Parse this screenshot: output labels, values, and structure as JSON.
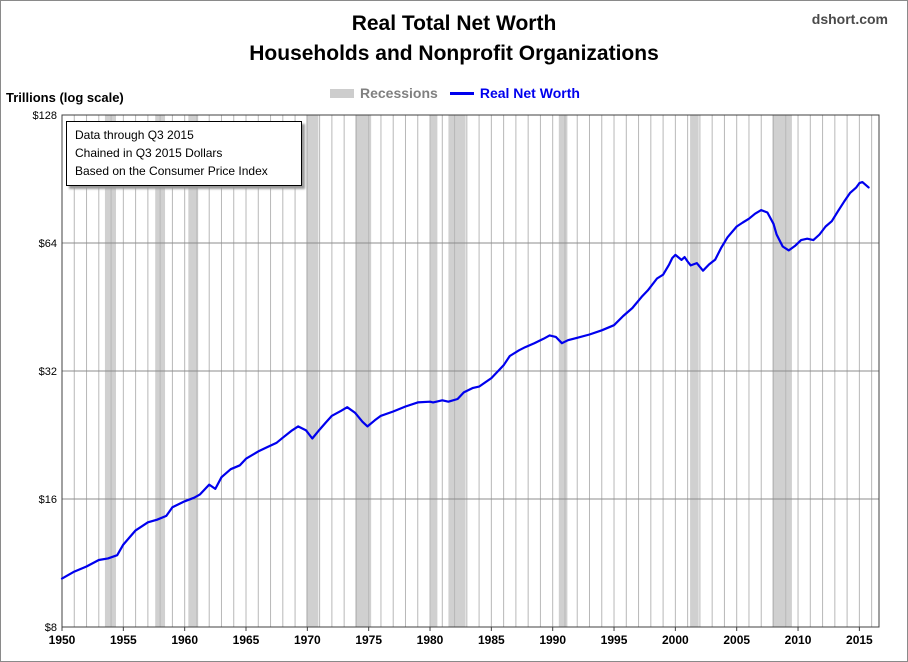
{
  "chart_data": {
    "type": "line",
    "title": "Real Total Net Worth",
    "subtitle": "Households and Nonprofit Organizations",
    "source": "dshort.com",
    "ylabel": "Trillions (log scale)",
    "xlabel": "",
    "y_scale": "log",
    "ylim": [
      8,
      128
    ],
    "xlim": [
      1950,
      2016.6
    ],
    "y_ticks": [
      8,
      16,
      32,
      64,
      128
    ],
    "y_tick_labels": [
      "$8",
      "$16",
      "$32",
      "$64",
      "$128"
    ],
    "x_ticks": [
      1950,
      1955,
      1960,
      1965,
      1970,
      1975,
      1980,
      1985,
      1990,
      1995,
      2000,
      2005,
      2010,
      2015
    ],
    "x_tick_labels": [
      "1950",
      "1955",
      "1960",
      "1965",
      "1970",
      "1975",
      "1980",
      "1985",
      "1990",
      "1995",
      "2000",
      "2005",
      "2010",
      "2015"
    ],
    "grid": true,
    "legend": {
      "placement": "top-center",
      "entries": [
        {
          "label": "Recessions",
          "color": "#cdcdcd",
          "kind": "band"
        },
        {
          "label": "Real Net Worth",
          "color": "#0000ee",
          "kind": "line"
        }
      ]
    },
    "annotation": [
      "Data through Q3 2015",
      "Chained in Q3 2015  Dollars",
      "Based on the Consumer Price Index"
    ],
    "recessions": [
      [
        1953.5,
        1954.4
      ],
      [
        1957.6,
        1958.4
      ],
      [
        1960.3,
        1961.1
      ],
      [
        1969.9,
        1970.9
      ],
      [
        1973.9,
        1975.2
      ],
      [
        1980.0,
        1980.6
      ],
      [
        1981.5,
        1982.9
      ],
      [
        1990.5,
        1991.2
      ],
      [
        2001.2,
        2001.9
      ],
      [
        2007.9,
        2009.5
      ]
    ],
    "series": [
      {
        "name": "Real Net Worth",
        "color": "#0000ee",
        "x": [
          1950.0,
          1951.0,
          1952.0,
          1953.0,
          1953.75,
          1954.5,
          1955.0,
          1956.0,
          1957.0,
          1957.75,
          1958.5,
          1959.0,
          1960.0,
          1960.75,
          1961.25,
          1962.0,
          1962.5,
          1963.0,
          1963.75,
          1964.5,
          1965.0,
          1966.0,
          1966.75,
          1967.5,
          1968.0,
          1968.75,
          1969.25,
          1969.9,
          1970.4,
          1971.0,
          1971.5,
          1972.0,
          1972.75,
          1973.25,
          1973.9,
          1974.5,
          1974.9,
          1975.5,
          1976.0,
          1977.0,
          1978.0,
          1979.0,
          1980.0,
          1980.25,
          1981.0,
          1981.5,
          1982.25,
          1982.75,
          1983.5,
          1984.0,
          1985.0,
          1986.0,
          1986.5,
          1987.25,
          1987.75,
          1988.5,
          1989.25,
          1989.75,
          1990.25,
          1990.75,
          1991.25,
          1992.0,
          1993.0,
          1994.0,
          1995.0,
          1995.75,
          1996.5,
          1997.25,
          1997.75,
          1998.5,
          1999.0,
          1999.5,
          1999.75,
          2000.0,
          2000.5,
          2000.75,
          2001.0,
          2001.25,
          2001.75,
          2002.25,
          2002.75,
          2003.25,
          2003.75,
          2004.25,
          2005.0,
          2005.5,
          2006.0,
          2006.5,
          2007.0,
          2007.5,
          2008.0,
          2008.25,
          2008.75,
          2009.25,
          2009.75,
          2010.25,
          2010.75,
          2011.25,
          2011.75,
          2012.25,
          2012.75,
          2013.25,
          2013.75,
          2014.25,
          2014.75,
          2015.0,
          2015.25,
          2015.75
        ],
        "values": [
          10.4,
          10.8,
          11.1,
          11.5,
          11.6,
          11.8,
          12.5,
          13.5,
          14.1,
          14.3,
          14.6,
          15.3,
          15.8,
          16.1,
          16.4,
          17.3,
          16.9,
          18.0,
          18.8,
          19.2,
          19.9,
          20.7,
          21.2,
          21.7,
          22.3,
          23.2,
          23.7,
          23.2,
          22.2,
          23.3,
          24.2,
          25.1,
          25.8,
          26.3,
          25.5,
          24.3,
          23.7,
          24.5,
          25.1,
          25.7,
          26.4,
          27.0,
          27.1,
          27.0,
          27.3,
          27.1,
          27.5,
          28.5,
          29.2,
          29.4,
          30.8,
          33.0,
          34.7,
          35.8,
          36.4,
          37.2,
          38.1,
          38.8,
          38.5,
          37.2,
          37.8,
          38.3,
          39.0,
          39.9,
          41.0,
          43.1,
          45.0,
          47.8,
          49.5,
          52.8,
          53.9,
          57.0,
          59.0,
          60.0,
          58.4,
          59.3,
          57.9,
          56.7,
          57.4,
          55.1,
          57.0,
          58.5,
          62.5,
          66.0,
          70.0,
          71.5,
          73.0,
          75.0,
          76.5,
          75.5,
          71.0,
          67.0,
          62.8,
          61.5,
          63.0,
          65.0,
          65.5,
          65.0,
          67.0,
          70.0,
          72.0,
          76.0,
          80.0,
          84.0,
          86.5,
          88.5,
          89.0,
          86.5
        ]
      }
    ]
  }
}
